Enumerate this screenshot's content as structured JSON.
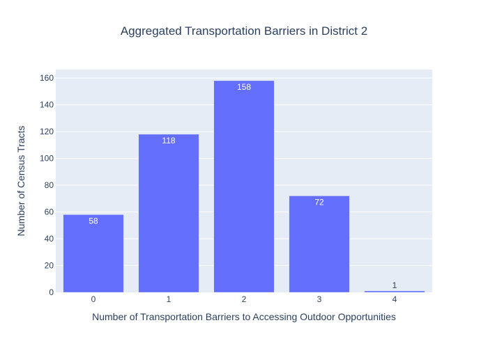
{
  "chart_data": {
    "type": "bar",
    "title": "Aggregated Transportation Barriers in District 2",
    "xlabel": "Number of Transportation Barriers to Accessing Outdoor Opportunities",
    "ylabel": "Number of Census Tracts",
    "categories": [
      "0",
      "1",
      "2",
      "3",
      "4"
    ],
    "values": [
      58,
      118,
      158,
      72,
      1
    ],
    "data_labels": [
      "58",
      "118",
      "158",
      "72",
      "1"
    ],
    "ylim": [
      0,
      166.3
    ],
    "yticks": [
      0,
      20,
      40,
      60,
      80,
      100,
      120,
      140,
      160
    ],
    "ytick_labels": [
      "0",
      "20",
      "40",
      "60",
      "80",
      "100",
      "120",
      "140",
      "160"
    ],
    "grid": true,
    "legend": "none",
    "colors": {
      "bar": "#636efa",
      "plot_bg": "#e5ecf6",
      "grid": "#ffffff",
      "text": "#2a3f5f"
    }
  }
}
